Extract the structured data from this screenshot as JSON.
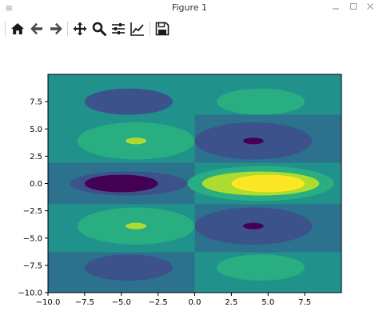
{
  "window": {
    "title": "Figure 1",
    "menu_icon": "≡",
    "minimize_icon": "minimize-icon",
    "maximize_icon": "maximize-icon",
    "close_icon": "close-icon"
  },
  "toolbar": {
    "buttons": [
      {
        "name": "home-button",
        "icon": "home-icon"
      },
      {
        "name": "back-button",
        "icon": "back-arrow-icon"
      },
      {
        "name": "forward-button",
        "icon": "forward-arrow-icon"
      },
      {
        "name": "pan-button",
        "icon": "pan-move-icon"
      },
      {
        "name": "zoom-button",
        "icon": "zoom-magnifier-icon"
      },
      {
        "name": "configure-subplots-button",
        "icon": "sliders-icon"
      },
      {
        "name": "edit-axes-button",
        "icon": "line-chart-icon"
      },
      {
        "name": "save-button",
        "icon": "floppy-disk-icon"
      }
    ]
  },
  "chart_data": {
    "type": "heatmap",
    "title": "",
    "xlabel": "",
    "ylabel": "",
    "xlim": [
      -10,
      10
    ],
    "ylim": [
      -10,
      10
    ],
    "xticks": [
      "−10.0",
      "−7.5",
      "−5.0",
      "−2.5",
      "0.0",
      "2.5",
      "5.0",
      "7.5"
    ],
    "xtick_values": [
      -10,
      -7.5,
      -5,
      -2.5,
      0,
      2.5,
      5,
      7.5
    ],
    "yticks": [
      "−10.0",
      "−7.5",
      "−5.0",
      "−2.5",
      "0.0",
      "2.5",
      "5.0",
      "7.5"
    ],
    "ytick_values": [
      -10,
      -7.5,
      -5,
      -2.5,
      0,
      2.5,
      5,
      7.5
    ],
    "grid": false,
    "colormap": "viridis",
    "contour_levels_colors": [
      "#440154",
      "#3b528b",
      "#2c728e",
      "#21918c",
      "#28ae80",
      "#5ec962",
      "#addc30",
      "#fde725"
    ],
    "contour_regions": [
      {
        "cx": -4.5,
        "cy": 7.5,
        "rx": 3.0,
        "ry": 1.2,
        "level": 1
      },
      {
        "cx": 4.5,
        "cy": 7.5,
        "rx": 3.0,
        "ry": 1.2,
        "level": 4
      },
      {
        "cx": -4.0,
        "cy": 3.9,
        "rx": 4.0,
        "ry": 1.7,
        "level": 4
      },
      {
        "cx": -4.0,
        "cy": 3.9,
        "rx": 0.7,
        "ry": 0.3,
        "level": 6
      },
      {
        "cx": 4.0,
        "cy": 3.9,
        "rx": 4.0,
        "ry": 1.7,
        "level": 1
      },
      {
        "cx": 4.0,
        "cy": 3.9,
        "rx": 0.7,
        "ry": 0.3,
        "level": 0
      },
      {
        "cx": -4.5,
        "cy": 0.0,
        "rx": 5.0,
        "ry": 1.6,
        "level": 2
      },
      {
        "cx": -4.5,
        "cy": 0.0,
        "rx": 4.0,
        "ry": 1.1,
        "level": 1
      },
      {
        "cx": -5.0,
        "cy": 0.0,
        "rx": 2.5,
        "ry": 0.8,
        "level": 0
      },
      {
        "cx": 4.5,
        "cy": 0.0,
        "rx": 5.0,
        "ry": 1.6,
        "level": 4
      },
      {
        "cx": 4.5,
        "cy": 0.0,
        "rx": 4.0,
        "ry": 1.1,
        "level": 6
      },
      {
        "cx": 5.0,
        "cy": 0.0,
        "rx": 2.5,
        "ry": 0.8,
        "level": 7
      },
      {
        "cx": -4.0,
        "cy": -3.9,
        "rx": 4.0,
        "ry": 1.7,
        "level": 4
      },
      {
        "cx": -4.0,
        "cy": -3.9,
        "rx": 0.7,
        "ry": 0.3,
        "level": 6
      },
      {
        "cx": 4.0,
        "cy": -3.9,
        "rx": 4.0,
        "ry": 1.7,
        "level": 1
      },
      {
        "cx": 4.0,
        "cy": -3.9,
        "rx": 0.7,
        "ry": 0.3,
        "level": 0
      },
      {
        "cx": -4.5,
        "cy": -7.7,
        "rx": 3.0,
        "ry": 1.2,
        "level": 1
      },
      {
        "cx": 4.5,
        "cy": -7.7,
        "rx": 3.0,
        "ry": 1.2,
        "level": 4
      }
    ],
    "band_regions": [
      {
        "x0": -10,
        "x1": 0,
        "y0": 6.3,
        "y1": 10,
        "level": 3
      },
      {
        "x0": 0,
        "x1": 10,
        "y0": 6.3,
        "y1": 10,
        "level": 3
      },
      {
        "x0": -10,
        "x1": 0,
        "y0": 1.9,
        "y1": 6.3,
        "level": 3
      },
      {
        "x0": 0,
        "x1": 10,
        "y0": 1.9,
        "y1": 6.3,
        "level": 2
      },
      {
        "x0": -10,
        "x1": 0,
        "y0": -1.9,
        "y1": 1.9,
        "level": 2
      },
      {
        "x0": 0,
        "x1": 10,
        "y0": -1.9,
        "y1": 1.9,
        "level": 3
      },
      {
        "x0": -10,
        "x1": 0,
        "y0": -6.3,
        "y1": -1.9,
        "level": 3
      },
      {
        "x0": 0,
        "x1": 10,
        "y0": -6.3,
        "y1": -1.9,
        "level": 2
      },
      {
        "x0": -10,
        "x1": 0,
        "y0": -10,
        "y1": -6.3,
        "level": 2
      },
      {
        "x0": 0,
        "x1": 10,
        "y0": -10,
        "y1": -6.3,
        "level": 3
      }
    ]
  }
}
